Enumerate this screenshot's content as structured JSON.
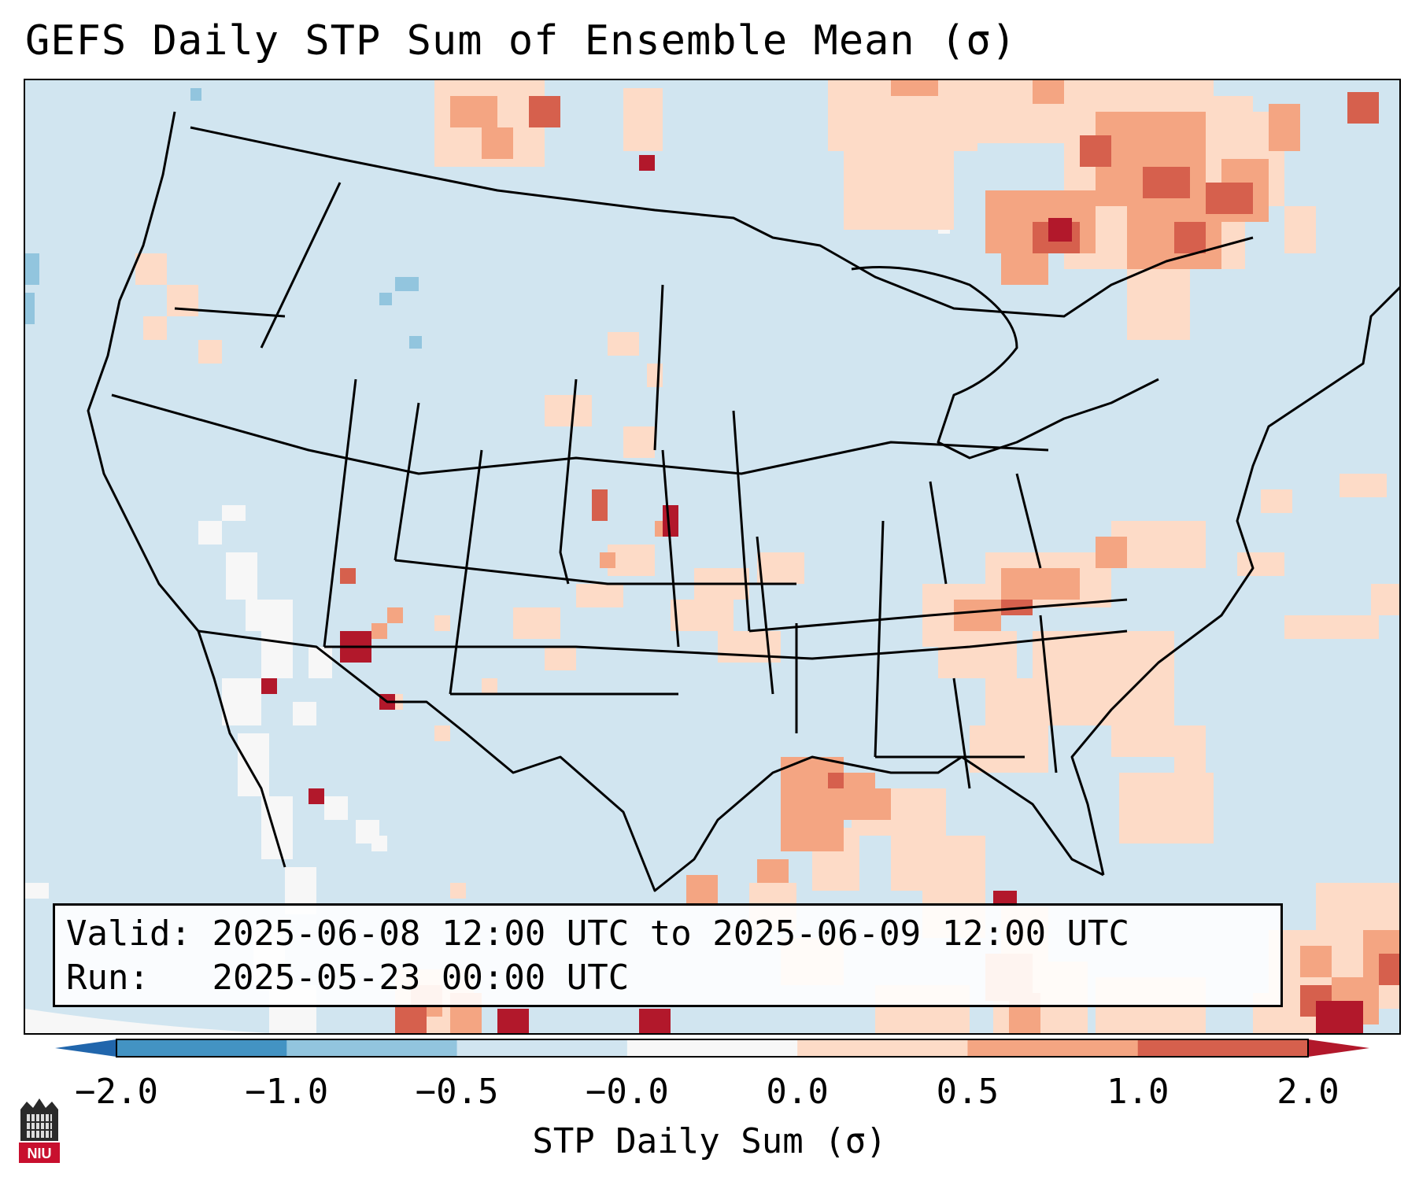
{
  "title": "GEFS Daily STP Sum of Ensemble Mean (σ)",
  "info": {
    "valid_label": "Valid:",
    "valid_value": "2025-06-08 12:00 UTC to 2025-06-09 12:00 UTC",
    "run_label": "Run:",
    "run_value": "2025-05-23 00:00 UTC"
  },
  "colorbar": {
    "label": "STP Daily Sum (σ)",
    "ticks": [
      "−2.0",
      "−1.0",
      "−0.5",
      "−0.0",
      "0.0",
      "0.5",
      "1.0",
      "2.0"
    ],
    "colors": [
      "#4393c3",
      "#92c5de",
      "#d1e5f0",
      "#f7f7f7",
      "#fddbc7",
      "#f4a582",
      "#d6604d"
    ],
    "under_color": "#2166ac",
    "over_color": "#b2182b"
  },
  "map": {
    "region": "Contiguous United States",
    "background_color": "#d1e5f0",
    "logo_text": "NIU"
  }
}
